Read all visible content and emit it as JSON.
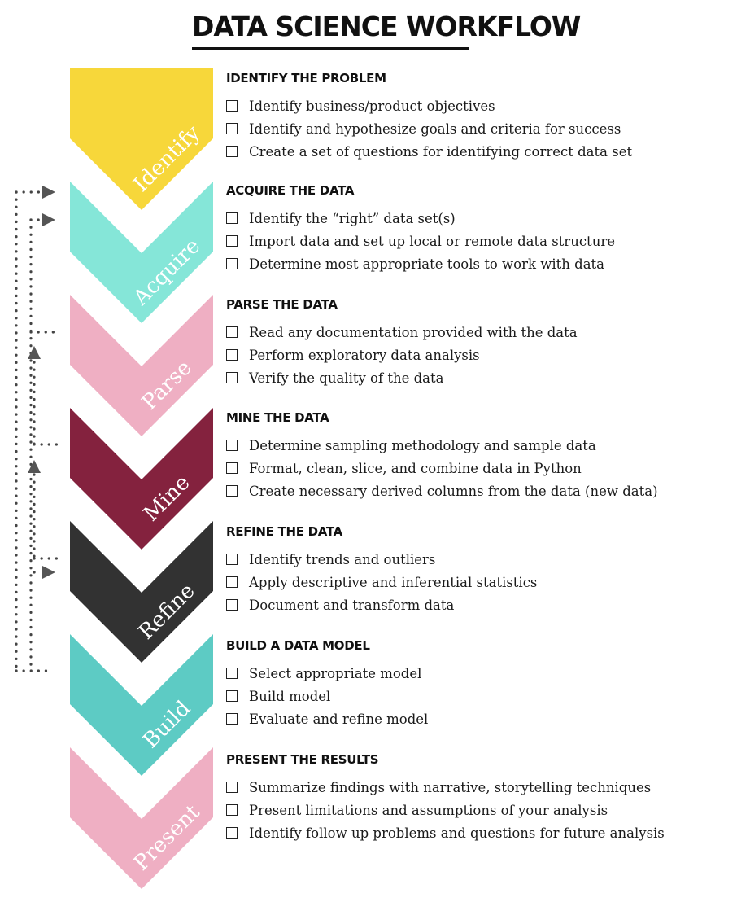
{
  "title": "DATA SCIENCE  WORKFLOW",
  "stages": [
    {
      "label": "Identify",
      "color": "#F7D73A"
    },
    {
      "label": "Acquire",
      "color": "#85E6D8"
    },
    {
      "label": "Parse",
      "color": "#EFAFC3"
    },
    {
      "label": "Mine",
      "color": "#84223E"
    },
    {
      "label": "Refine",
      "color": "#323232"
    },
    {
      "label": "Build",
      "color": "#5DCBC4"
    },
    {
      "label": "Present",
      "color": "#EFAFC3"
    }
  ],
  "sections": [
    {
      "heading": "IDENTIFY THE PROBLEM",
      "items": [
        "Identify business/product objectives",
        "Identify and hypothesize goals and criteria for success",
        "Create a set of questions for identifying correct data set"
      ]
    },
    {
      "heading": "ACQUIRE THE DATA",
      "items": [
        "Identify the “right” data set(s)",
        "Import data and set up local or remote data structure",
        "Determine most appropriate tools to work with data"
      ]
    },
    {
      "heading": "PARSE THE DATA",
      "items": [
        "Read any documentation provided with the data",
        "Perform exploratory data analysis",
        "Verify the quality of the data"
      ]
    },
    {
      "heading": "MINE THE DATA",
      "items": [
        "Determine sampling methodology and sample data",
        "Format, clean, slice, and combine data in Python",
        "Create necessary derived columns from the data (new data)"
      ]
    },
    {
      "heading": "REFINE THE DATA",
      "items": [
        "Identify trends and outliers",
        "Apply descriptive and inferential statistics",
        "Document and transform data"
      ]
    },
    {
      "heading": "BUILD A DATA MODEL",
      "items": [
        "Select appropriate model",
        "Build model",
        "Evaluate and refine model"
      ]
    },
    {
      "heading": "PRESENT THE RESULTS",
      "items": [
        "Summarize findings with narrative, storytelling techniques",
        "Present limitations and assumptions of your analysis",
        "Identify follow up problems and questions for future analysis"
      ]
    }
  ]
}
